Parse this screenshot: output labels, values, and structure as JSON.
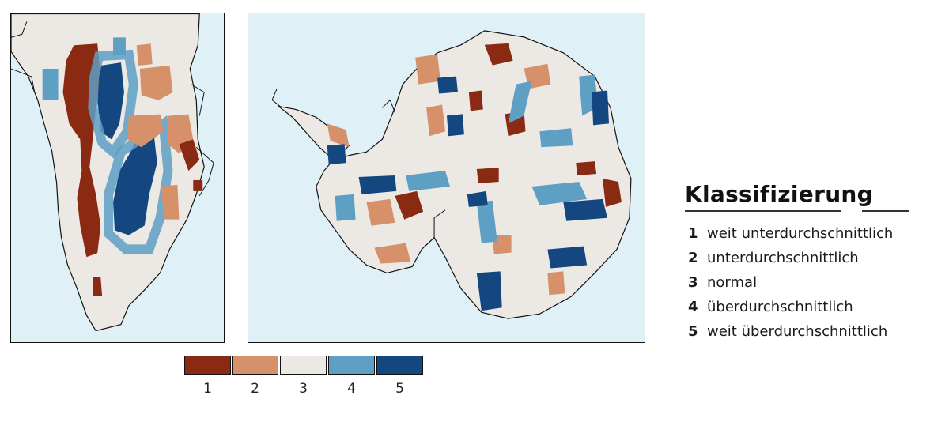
{
  "colors": {
    "class_1": "#8b2a13",
    "class_2": "#d6906a",
    "class_3": "#ece8e4",
    "class_4": "#5e9fc4",
    "class_5": "#14467f",
    "ocean": "#dff0f6",
    "coast": "#111111"
  },
  "colorbar": {
    "ticks": [
      "1",
      "2",
      "3",
      "4",
      "5"
    ]
  },
  "legend": {
    "title": "Klassifizierung",
    "items": [
      {
        "num": "1",
        "label": "weit unterdurchschnittlich"
      },
      {
        "num": "2",
        "label": "unterdurchschnittlich"
      },
      {
        "num": "3",
        "label": "normal"
      },
      {
        "num": "4",
        "label": "überdurchschnittlich"
      },
      {
        "num": "5",
        "label": "weit überdurchschnittlich"
      }
    ]
  }
}
